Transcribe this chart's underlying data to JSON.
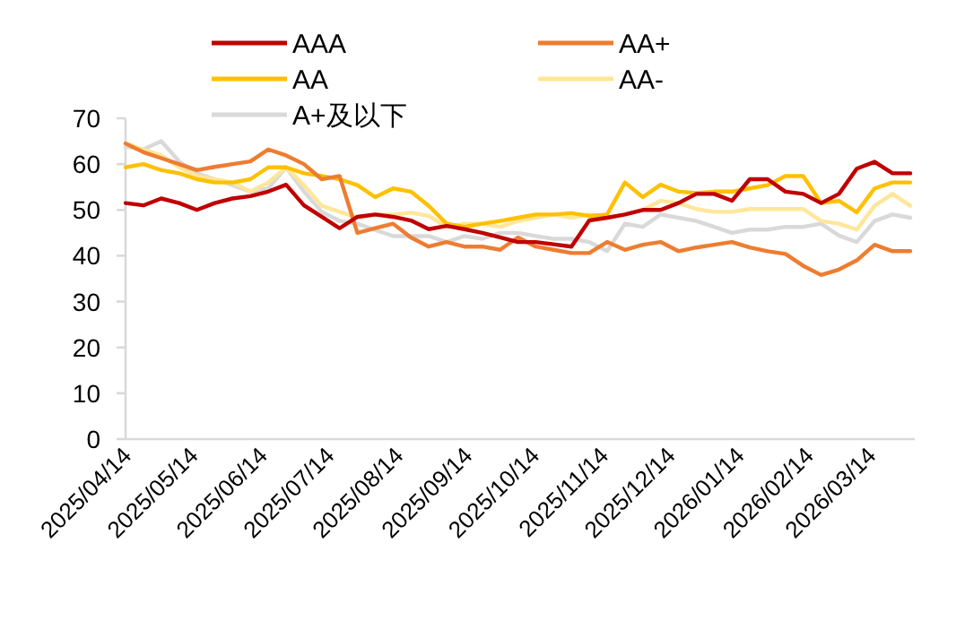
{
  "chart_data": {
    "type": "line",
    "legend": "top",
    "xlim": [
      "2025-04-14",
      "2026-04-03"
    ],
    "ylim": [
      0,
      70
    ],
    "yticks": [
      0,
      10,
      20,
      30,
      40,
      50,
      60,
      70
    ],
    "xticks": [
      {
        "value": "2025-04-14",
        "label": "2025/04/14"
      },
      {
        "value": "2025-05-14",
        "label": "2025/05/14"
      },
      {
        "value": "2025-06-14",
        "label": "2025/06/14"
      },
      {
        "value": "2025-07-14",
        "label": "2025/07/14"
      },
      {
        "value": "2025-08-14",
        "label": "2025/08/14"
      },
      {
        "value": "2025-09-14",
        "label": "2025/09/14"
      },
      {
        "value": "2025-10-14",
        "label": "2025/10/14"
      },
      {
        "value": "2025-11-14",
        "label": "2025/11/14"
      },
      {
        "value": "2025-12-14",
        "label": "2025/12/14"
      },
      {
        "value": "2026-01-14",
        "label": "2026/01/14"
      },
      {
        "value": "2026-02-14",
        "label": "2026/02/14"
      },
      {
        "value": "2026-03-14",
        "label": "2026/03/14"
      }
    ],
    "x": [
      "2025-04-14",
      "2025-04-22",
      "2025-04-30",
      "2025-05-08",
      "2025-05-16",
      "2025-05-24",
      "2025-06-01",
      "2025-06-09",
      "2025-06-17",
      "2025-06-25",
      "2025-07-03",
      "2025-07-11",
      "2025-07-19",
      "2025-07-27",
      "2025-08-04",
      "2025-08-12",
      "2025-08-20",
      "2025-08-28",
      "2025-09-05",
      "2025-09-13",
      "2025-09-21",
      "2025-09-29",
      "2025-10-07",
      "2025-10-15",
      "2025-10-23",
      "2025-10-31",
      "2025-11-08",
      "2025-11-16",
      "2025-11-24",
      "2025-12-02",
      "2025-12-10",
      "2025-12-18",
      "2025-12-26",
      "2026-01-03",
      "2026-01-11",
      "2026-01-19",
      "2026-01-27",
      "2026-02-04",
      "2026-02-12",
      "2026-02-20",
      "2026-02-28",
      "2026-03-08",
      "2026-03-16",
      "2026-03-24",
      "2026-04-01"
    ],
    "series": [
      {
        "name": "AAA",
        "color": "#c00000",
        "values": [
          51.5,
          51,
          52.5,
          51.5,
          50,
          51.5,
          52.5,
          53,
          54,
          55.5,
          51,
          48.5,
          46,
          48.5,
          49,
          48.5,
          47.7,
          45.8,
          46.5,
          45.8,
          45,
          44,
          43,
          43,
          42.5,
          42,
          47.7,
          48.3,
          49,
          50,
          50,
          51.5,
          53.5,
          53.5,
          52,
          56.7,
          56.7,
          54,
          53.5,
          51.5,
          53.5,
          59,
          60.5,
          58,
          58
        ]
      },
      {
        "name": "AA+",
        "color": "#ed7d31",
        "values": [
          64.5,
          62.6,
          61.3,
          60,
          58.7,
          59.4,
          60,
          60.6,
          63.2,
          61.9,
          60,
          56.7,
          57.4,
          45,
          46,
          47,
          44,
          42,
          43,
          42,
          42,
          41.3,
          44,
          42,
          41.3,
          40.6,
          40.6,
          43,
          41.3,
          42.4,
          43,
          41,
          41.8,
          42.4,
          43,
          41.8,
          41,
          40.4,
          37.8,
          35.8,
          37,
          39,
          42.4,
          41,
          41
        ]
      },
      {
        "name": "AA",
        "color": "#ffc000",
        "values": [
          59.3,
          60,
          58.7,
          58,
          56.7,
          56,
          56,
          56.7,
          59.3,
          59.3,
          58,
          57.4,
          56.7,
          55.4,
          52.8,
          54.7,
          54,
          50.9,
          47,
          46.3,
          47,
          47.6,
          48.3,
          49,
          49,
          49.3,
          48.7,
          49,
          56,
          52.8,
          55.5,
          54,
          53.7,
          54,
          54,
          54.7,
          55.4,
          57.4,
          57.4,
          51.5,
          52,
          49.5,
          54.7,
          56,
          56
        ]
      },
      {
        "name": "AA-",
        "color": "#ffe699",
        "values": [
          64.5,
          63.2,
          61.9,
          59.3,
          57.4,
          56.7,
          56,
          54,
          56,
          59.3,
          55.4,
          50.9,
          49.6,
          48.3,
          49,
          49,
          49.4,
          48.7,
          46.3,
          47,
          47,
          46.3,
          47.6,
          48.3,
          49,
          48.3,
          49,
          48.3,
          49,
          50,
          52,
          51.5,
          50.2,
          49.6,
          49.6,
          50.2,
          50.2,
          50.2,
          50.2,
          47.6,
          47,
          45.7,
          50.9,
          53.5,
          50.9
        ]
      },
      {
        "name": "A+及以下",
        "color": "#d9d9d9",
        "values": [
          63.8,
          63.2,
          65,
          60.6,
          58,
          56.7,
          55.4,
          54,
          54.7,
          59.3,
          54,
          49.6,
          47.6,
          47,
          45.6,
          44.3,
          44.3,
          44.3,
          43,
          44.3,
          43.7,
          45,
          45,
          44.3,
          43.7,
          43.7,
          43,
          41,
          47,
          46.3,
          49,
          48.3,
          47.6,
          46.3,
          45,
          45.7,
          45.7,
          46.3,
          46.3,
          47,
          44.4,
          43,
          47.6,
          49,
          48.3
        ]
      }
    ]
  }
}
